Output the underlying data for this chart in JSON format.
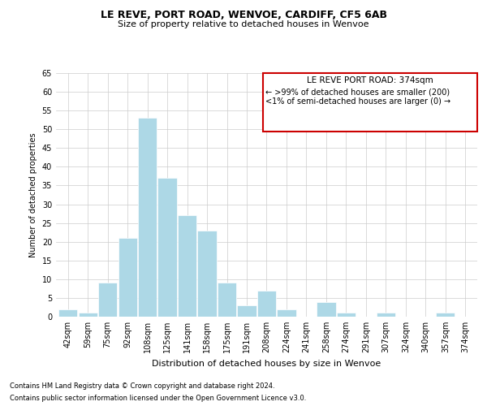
{
  "title": "LE REVE, PORT ROAD, WENVOE, CARDIFF, CF5 6AB",
  "subtitle": "Size of property relative to detached houses in Wenvoe",
  "xlabel": "Distribution of detached houses by size in Wenvoe",
  "ylabel": "Number of detached properties",
  "bar_labels": [
    "42sqm",
    "59sqm",
    "75sqm",
    "92sqm",
    "108sqm",
    "125sqm",
    "141sqm",
    "158sqm",
    "175sqm",
    "191sqm",
    "208sqm",
    "224sqm",
    "241sqm",
    "258sqm",
    "274sqm",
    "291sqm",
    "307sqm",
    "324sqm",
    "340sqm",
    "357sqm",
    "374sqm"
  ],
  "bar_values": [
    2,
    1,
    9,
    21,
    53,
    37,
    27,
    23,
    9,
    3,
    7,
    2,
    0,
    4,
    1,
    0,
    1,
    0,
    0,
    1,
    0
  ],
  "bar_color": "#add8e6",
  "ylim": [
    0,
    65
  ],
  "yticks": [
    0,
    5,
    10,
    15,
    20,
    25,
    30,
    35,
    40,
    45,
    50,
    55,
    60,
    65
  ],
  "annotation_box_title": "LE REVE PORT ROAD: 374sqm",
  "annotation_line1": "← >99% of detached houses are smaller (200)",
  "annotation_line2": "<1% of semi-detached houses are larger (0) →",
  "box_edge_color": "#cc0000",
  "footer_line1": "Contains HM Land Registry data © Crown copyright and database right 2024.",
  "footer_line2": "Contains public sector information licensed under the Open Government Licence v3.0.",
  "background_color": "#ffffff",
  "grid_color": "#cccccc",
  "title_fontsize": 9,
  "subtitle_fontsize": 8,
  "xlabel_fontsize": 8,
  "ylabel_fontsize": 7,
  "tick_fontsize": 7,
  "footer_fontsize": 6,
  "annot_title_fontsize": 7.5,
  "annot_text_fontsize": 7
}
